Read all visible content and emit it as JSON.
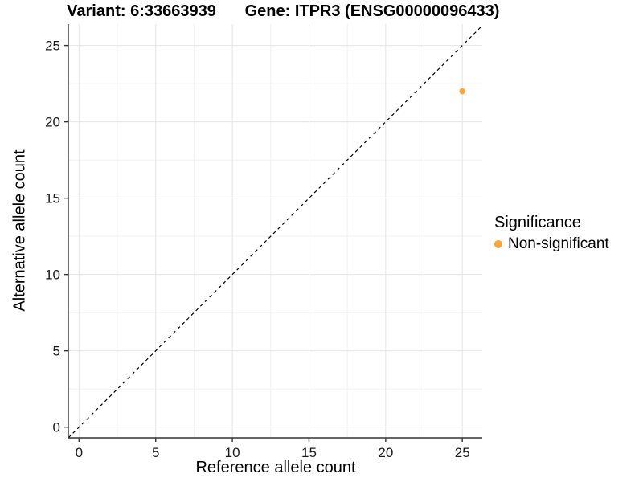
{
  "chart_data": {
    "type": "scatter",
    "title_left": "Variant: 6:33663939",
    "title_right": "Gene: ITPR3 (ENSG00000096433)",
    "xlabel": "Reference allele count",
    "ylabel": "Alternative allele count",
    "x_ticks": [
      0,
      5,
      10,
      15,
      20,
      25
    ],
    "y_ticks": [
      0,
      5,
      10,
      15,
      20,
      25
    ],
    "x_minor_ticks": [
      2.5,
      7.5,
      12.5,
      17.5,
      22.5
    ],
    "y_minor_ticks": [
      2.5,
      7.5,
      12.5,
      17.5,
      22.5
    ],
    "xlim": [
      -0.7,
      26.3
    ],
    "ylim": [
      -0.7,
      26.4
    ],
    "grid": true,
    "legend_position": "right",
    "reference_line": {
      "slope": 1,
      "intercept": 0,
      "style": "dashed",
      "color": "#000000"
    },
    "points": [
      {
        "x": 25,
        "y": 22,
        "series": "Non-significant"
      }
    ],
    "series_colors": {
      "Non-significant": "#FAA43A"
    },
    "legend": {
      "title": "Significance",
      "items": [
        {
          "label": "Non-significant",
          "color": "#FAA43A"
        }
      ]
    },
    "theme": {
      "panel_background": "#ffffff",
      "grid_major_color": "#e5e5e5",
      "grid_minor_color": "#f0f0f0",
      "axis_color": "#333333",
      "tick_label_color": "#1a1a1a"
    }
  }
}
